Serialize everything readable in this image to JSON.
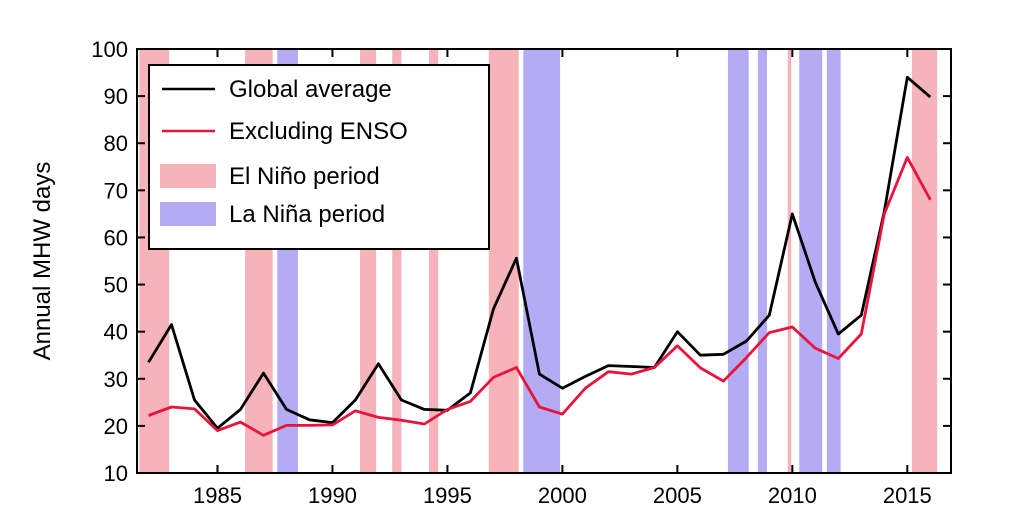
{
  "chart_data": {
    "type": "line",
    "title": "",
    "xlabel": "",
    "ylabel": "Annual MHW days",
    "xlim": [
      1981.5,
      2016.9
    ],
    "ylim": [
      10,
      100
    ],
    "xticks": [
      1985,
      1990,
      1995,
      2000,
      2005,
      2010,
      2015
    ],
    "yticks": [
      10,
      20,
      30,
      40,
      50,
      60,
      70,
      80,
      90,
      100
    ],
    "grid": false,
    "legend_position": "top-left",
    "x": [
      1982,
      1983,
      1984,
      1985,
      1986,
      1987,
      1988,
      1989,
      1990,
      1991,
      1992,
      1993,
      1994,
      1995,
      1996,
      1997,
      1998,
      1999,
      2000,
      2001,
      2002,
      2003,
      2004,
      2005,
      2006,
      2007,
      2008,
      2009,
      2010,
      2011,
      2012,
      2013,
      2014,
      2015,
      2016
    ],
    "series": [
      {
        "name": "Global average",
        "color": "#000000",
        "values": [
          33.5,
          41.5,
          25.5,
          19.5,
          23.5,
          31.2,
          23.5,
          21.3,
          20.7,
          25.5,
          33.2,
          25.5,
          23.5,
          23.3,
          27.0,
          44.8,
          55.6,
          31.0,
          28.0,
          30.5,
          32.8,
          32.6,
          32.4,
          40.0,
          35.0,
          35.2,
          38.0,
          43.5,
          65.0,
          50.5,
          39.5,
          43.5,
          65.5,
          94.0,
          89.8
        ]
      },
      {
        "name": "Excluding ENSO",
        "color": "#e8143c",
        "values": [
          22.2,
          24.0,
          23.6,
          19.0,
          20.8,
          18.0,
          20.1,
          20.1,
          20.2,
          23.2,
          21.8,
          21.2,
          20.4,
          23.5,
          25.2,
          30.3,
          32.4,
          24.0,
          22.5,
          28.0,
          31.5,
          31.0,
          32.4,
          37.0,
          32.3,
          29.5,
          34.5,
          39.8,
          41.0,
          36.5,
          34.3,
          39.5,
          65.0,
          77.0,
          68.0
        ]
      }
    ],
    "shaded_periods": [
      {
        "name": "El Niño period",
        "color": "#f7b3ba",
        "ranges": [
          [
            1981.6,
            1982.9
          ],
          [
            1986.2,
            1987.4
          ],
          [
            1991.2,
            1991.9
          ],
          [
            1992.6,
            1993.0
          ],
          [
            1994.2,
            1994.6
          ],
          [
            1996.8,
            1998.1
          ],
          [
            2009.8,
            2009.95
          ],
          [
            2015.2,
            2016.3
          ]
        ]
      },
      {
        "name": "La Niña period",
        "color": "#b3acf5",
        "ranges": [
          [
            1987.6,
            1988.5
          ],
          [
            1998.3,
            1999.9
          ],
          [
            2007.2,
            2008.1
          ],
          [
            2008.5,
            2008.9
          ],
          [
            2010.3,
            2011.3
          ],
          [
            2011.5,
            2012.1
          ]
        ]
      }
    ]
  }
}
